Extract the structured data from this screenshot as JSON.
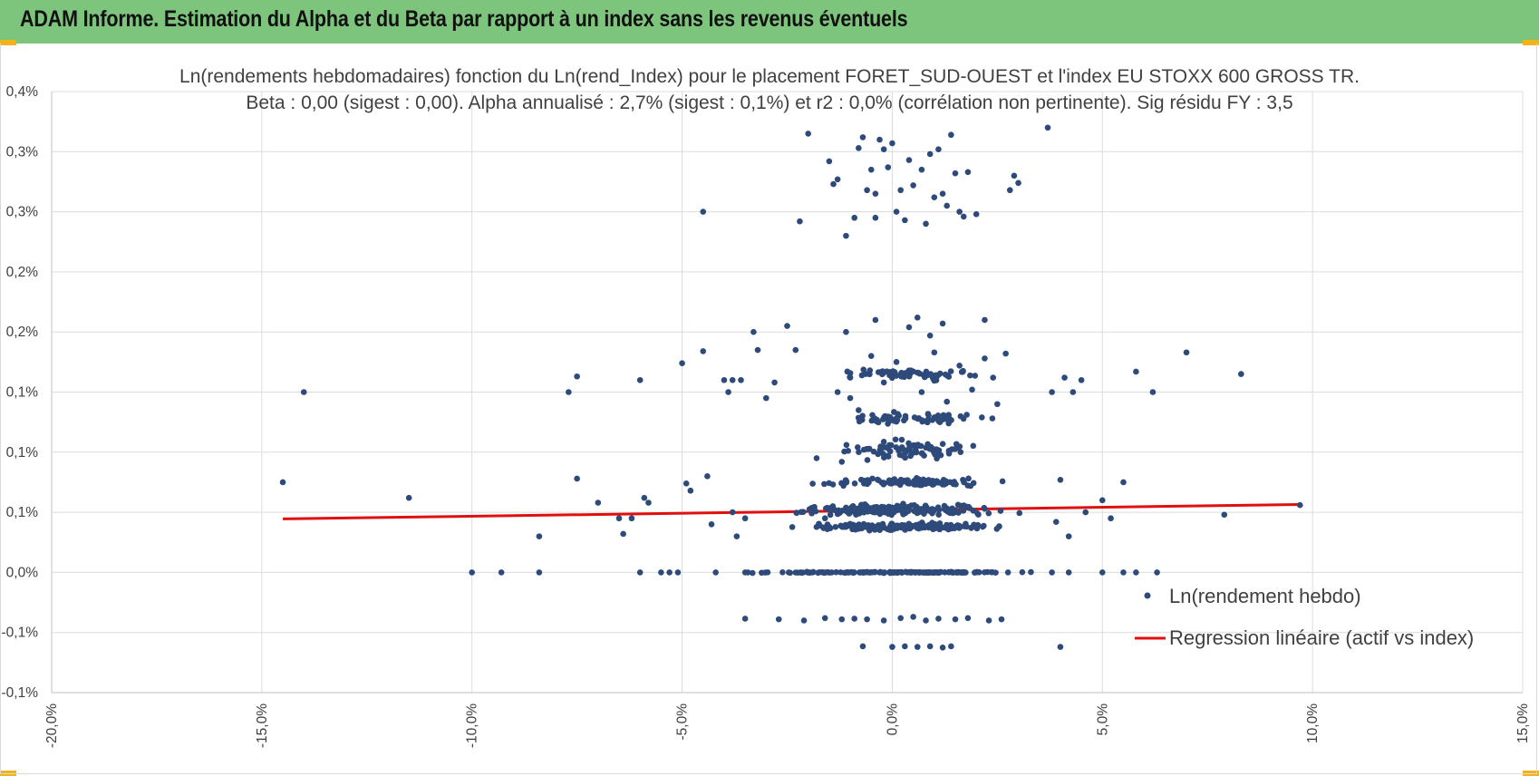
{
  "header": {
    "title": "ADAM Informe. Estimation du Alpha et du Beta par rapport à un index sans les revenus éventuels",
    "background": "#7dc57c",
    "corner_color": "#f2b21a"
  },
  "chart_data": {
    "type": "scatter",
    "title_line1": "Ln(rendements hebdomadaires) fonction du Ln(rend_Index) pour le placement FORET_SUD-OUEST et l'index EU STOXX 600 GROSS TR.",
    "title_line2": "Beta : 0,00 (sigest : 0,00). Alpha annualisé : 2,7% (sigest : 0,1%) et r2 : 0,0% (corrélation non pertinente). Sig résidu FY : 3,5",
    "xlabel": "",
    "ylabel": "",
    "xlim": [
      -20,
      15
    ],
    "ylim": [
      -0.1,
      0.4
    ],
    "grid": true,
    "x_ticks": [
      {
        "value": -20,
        "label": "-20,0%"
      },
      {
        "value": -15,
        "label": "-15,0%"
      },
      {
        "value": -10,
        "label": "-10,0%"
      },
      {
        "value": -5,
        "label": "-5,0%"
      },
      {
        "value": 0,
        "label": "0,0%"
      },
      {
        "value": 5,
        "label": "5,0%"
      },
      {
        "value": 10,
        "label": "10,0%"
      },
      {
        "value": 15,
        "label": "15,0%"
      }
    ],
    "y_ticks": [
      {
        "value": 0.4,
        "label": "0,4%"
      },
      {
        "value": 0.35,
        "label": "0,3%"
      },
      {
        "value": 0.3,
        "label": "0,3%"
      },
      {
        "value": 0.25,
        "label": "0,2%"
      },
      {
        "value": 0.2,
        "label": "0,2%"
      },
      {
        "value": 0.15,
        "label": "0,1%"
      },
      {
        "value": 0.1,
        "label": "0,1%"
      },
      {
        "value": 0.05,
        "label": "0,1%"
      },
      {
        "value": 0.0,
        "label": "0,0%"
      },
      {
        "value": -0.05,
        "label": "-0,1%"
      },
      {
        "value": -0.1,
        "label": "-0,1%"
      }
    ],
    "series": [
      {
        "name": "Ln(rendement hebdo)",
        "kind": "scatter",
        "color": "#2e4a7a",
        "points": [
          [
            -14.5,
            0.075
          ],
          [
            -14.0,
            0.15
          ],
          [
            -11.5,
            0.062
          ],
          [
            -10.0,
            0.0
          ],
          [
            -9.3,
            0.0
          ],
          [
            -8.4,
            0.0
          ],
          [
            -8.4,
            0.03
          ],
          [
            -7.7,
            0.15
          ],
          [
            -7.5,
            0.163
          ],
          [
            -7.5,
            0.078
          ],
          [
            -7.0,
            0.058
          ],
          [
            -6.5,
            0.045
          ],
          [
            -6.4,
            0.032
          ],
          [
            -6.2,
            0.045
          ],
          [
            -6.0,
            0.0
          ],
          [
            -6.0,
            0.16
          ],
          [
            -5.9,
            0.062
          ],
          [
            -5.8,
            0.058
          ],
          [
            -5.5,
            0.0
          ],
          [
            -5.3,
            0.0
          ],
          [
            -5.1,
            0.0
          ],
          [
            -5.0,
            0.174
          ],
          [
            -4.9,
            0.074
          ],
          [
            -4.8,
            0.068
          ],
          [
            -4.5,
            0.3
          ],
          [
            -4.5,
            0.184
          ],
          [
            -4.4,
            0.08
          ],
          [
            -4.3,
            0.04
          ],
          [
            -4.2,
            0.0
          ],
          [
            -4.0,
            0.16
          ],
          [
            -3.9,
            0.15
          ],
          [
            -3.8,
            0.16
          ],
          [
            -3.6,
            0.16
          ],
          [
            -3.5,
            0.0
          ],
          [
            -3.8,
            0.05
          ],
          [
            -3.7,
            0.03
          ],
          [
            -3.5,
            0.045
          ],
          [
            -3.3,
            0.2
          ],
          [
            -3.2,
            0.185
          ],
          [
            -3.0,
            0.145
          ],
          [
            -2.8,
            0.158
          ],
          [
            -2.5,
            0.205
          ],
          [
            -2.3,
            0.185
          ],
          [
            -2.2,
            0.292
          ],
          [
            -2.0,
            0.365
          ],
          [
            -1.9,
            0.0
          ],
          [
            -1.8,
            0.095
          ],
          [
            -1.6,
            0.045
          ],
          [
            -1.5,
            0.342
          ],
          [
            -1.4,
            0.323
          ],
          [
            -1.3,
            0.327
          ],
          [
            -1.2,
            0.092
          ],
          [
            -1.1,
            0.28
          ],
          [
            -1.0,
            0.162
          ],
          [
            -0.9,
            0.295
          ],
          [
            -0.8,
            0.353
          ],
          [
            -0.7,
            0.362
          ],
          [
            -0.6,
            0.318
          ],
          [
            -0.5,
            0.335
          ],
          [
            -0.4,
            0.315
          ],
          [
            -0.4,
            0.295
          ],
          [
            -0.3,
            0.36
          ],
          [
            -0.2,
            0.352
          ],
          [
            -0.1,
            0.337
          ],
          [
            0.0,
            0.357
          ],
          [
            0.1,
            0.3
          ],
          [
            0.2,
            0.318
          ],
          [
            0.3,
            0.293
          ],
          [
            0.4,
            0.343
          ],
          [
            0.5,
            0.322
          ],
          [
            0.6,
            0.212
          ],
          [
            0.7,
            0.335
          ],
          [
            0.8,
            0.29
          ],
          [
            0.9,
            0.348
          ],
          [
            1.0,
            0.312
          ],
          [
            1.1,
            0.352
          ],
          [
            1.2,
            0.315
          ],
          [
            1.3,
            0.305
          ],
          [
            1.4,
            0.364
          ],
          [
            1.5,
            0.332
          ],
          [
            1.6,
            0.3
          ],
          [
            1.7,
            0.296
          ],
          [
            1.8,
            0.333
          ],
          [
            2.0,
            0.298
          ],
          [
            2.2,
            0.21
          ],
          [
            2.4,
            0.162
          ],
          [
            2.8,
            0.318
          ],
          [
            2.9,
            0.33
          ],
          [
            3.0,
            0.324
          ],
          [
            3.7,
            0.37
          ],
          [
            -1.3,
            0.15
          ],
          [
            -1.0,
            0.145
          ],
          [
            -0.8,
            0.135
          ],
          [
            -0.5,
            0.18
          ],
          [
            -0.2,
            0.158
          ],
          [
            0.1,
            0.175
          ],
          [
            0.4,
            0.168
          ],
          [
            0.7,
            0.15
          ],
          [
            1.0,
            0.183
          ],
          [
            1.3,
            0.142
          ],
          [
            1.6,
            0.172
          ],
          [
            1.9,
            0.152
          ],
          [
            2.2,
            0.178
          ],
          [
            2.5,
            0.14
          ],
          [
            2.7,
            0.182
          ],
          [
            -1.1,
            0.2
          ],
          [
            -0.4,
            0.21
          ],
          [
            0.4,
            0.204
          ],
          [
            0.9,
            0.197
          ],
          [
            1.2,
            0.207
          ],
          [
            -0.9,
            -0.0385
          ],
          [
            -0.6,
            -0.039
          ],
          [
            -0.2,
            -0.04
          ],
          [
            0.2,
            -0.038
          ],
          [
            0.5,
            -0.037
          ],
          [
            0.8,
            -0.04
          ],
          [
            1.1,
            -0.0385
          ],
          [
            1.5,
            -0.039
          ],
          [
            1.8,
            -0.038
          ],
          [
            2.3,
            -0.04
          ],
          [
            2.6,
            -0.039
          ],
          [
            -3.5,
            -0.0385
          ],
          [
            -2.7,
            -0.039
          ],
          [
            -2.1,
            -0.04
          ],
          [
            -1.6,
            -0.038
          ],
          [
            -1.2,
            -0.039
          ],
          [
            -0.7,
            -0.0615
          ],
          [
            0.0,
            -0.062
          ],
          [
            0.3,
            -0.0615
          ],
          [
            0.6,
            -0.062
          ],
          [
            0.9,
            -0.0615
          ],
          [
            1.2,
            -0.0625
          ],
          [
            1.4,
            -0.0615
          ],
          [
            4.0,
            -0.062
          ],
          [
            3.8,
            0.15
          ],
          [
            4.1,
            0.162
          ],
          [
            4.3,
            0.15
          ],
          [
            4.5,
            0.16
          ],
          [
            4.0,
            0.077
          ],
          [
            3.9,
            0.042
          ],
          [
            4.2,
            0.03
          ],
          [
            4.6,
            0.05
          ],
          [
            5.0,
            0.06
          ],
          [
            5.5,
            0.075
          ],
          [
            5.2,
            0.045
          ],
          [
            5.5,
            0.0
          ],
          [
            5.0,
            0.0
          ],
          [
            4.2,
            0.0
          ],
          [
            3.8,
            0.0
          ],
          [
            5.8,
            0.0
          ],
          [
            6.3,
            0.0
          ],
          [
            5.8,
            0.167
          ],
          [
            6.2,
            0.15
          ],
          [
            7.0,
            0.183
          ],
          [
            7.9,
            0.048
          ],
          [
            8.3,
            0.165
          ],
          [
            9.7,
            0.056
          ]
        ],
        "dense_clusters": [
          {
            "x_range": [
              -4.0,
              4.0
            ],
            "y": 0.0,
            "count": 150,
            "spread_y": 0.0006
          },
          {
            "x_range": [
              -3.0,
              3.2
            ],
            "y": 0.038,
            "count": 180,
            "spread_y": 0.004
          },
          {
            "x_range": [
              -3.0,
              3.3
            ],
            "y": 0.052,
            "count": 200,
            "spread_y": 0.006
          },
          {
            "x_range": [
              -2.5,
              3.0
            ],
            "y": 0.075,
            "count": 110,
            "spread_y": 0.004
          },
          {
            "x_range": [
              -1.8,
              2.6
            ],
            "y": 0.102,
            "count": 80,
            "spread_y": 0.012
          },
          {
            "x_range": [
              -1.8,
              2.6
            ],
            "y": 0.128,
            "count": 70,
            "spread_y": 0.006
          },
          {
            "x_range": [
              -1.6,
              2.5
            ],
            "y": 0.165,
            "count": 70,
            "spread_y": 0.006
          }
        ]
      },
      {
        "name": "Regression linéaire (actif vs index)",
        "kind": "line",
        "color": "#e01010",
        "points": [
          [
            -14.5,
            0.0445
          ],
          [
            9.7,
            0.0565
          ]
        ]
      }
    ],
    "legend": {
      "position": "right",
      "entries": [
        "Ln(rendement hebdo)",
        "Regression linéaire (actif vs index)"
      ]
    }
  }
}
